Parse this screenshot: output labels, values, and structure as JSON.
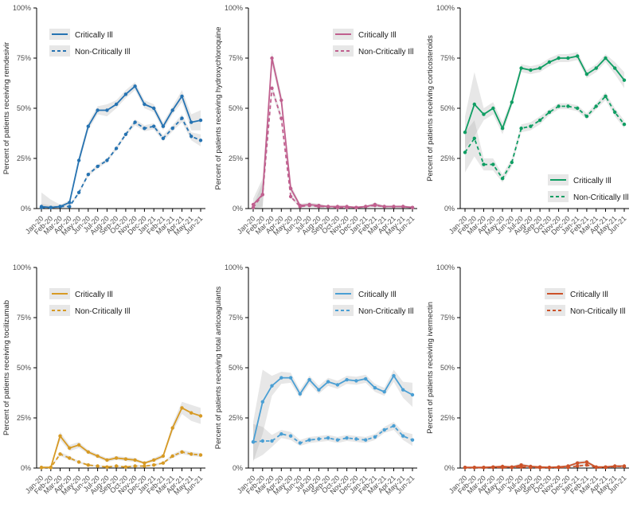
{
  "figure": {
    "background": "#ffffff",
    "months": [
      "Jan-20",
      "Feb-20",
      "Mar-20",
      "Apr-20",
      "May-20",
      "Jun-20",
      "Jul-20",
      "Aug-20",
      "Sep-20",
      "Oct-20",
      "Nov-20",
      "Dec-20",
      "Jan-21",
      "Feb-21",
      "Mar-21",
      "Apr-21",
      "May-21",
      "Jun-21"
    ],
    "y_axis": {
      "values": [
        0,
        25,
        50,
        75,
        100
      ],
      "labels": [
        "0%",
        "25%",
        "50%",
        "75%",
        "100%"
      ],
      "ylim": [
        0,
        100
      ]
    },
    "legend_labels": [
      "Critically Ill",
      "Non-Critically Ill"
    ],
    "ribbon_color": "#a8a8a8"
  },
  "chart_data": [
    {
      "type": "line",
      "id": "remdesivir",
      "ylabel": "Percent of patients receiving remdesivir",
      "color": "#2673b2",
      "legend_pos": "top-left",
      "series": [
        {
          "name": "Critically Ill",
          "style": "solid",
          "values": [
            1,
            0.5,
            1,
            3,
            24,
            41,
            49,
            49,
            52,
            57,
            61,
            52,
            50,
            41,
            49,
            56,
            43,
            44
          ],
          "ci": [
            7,
            4,
            1,
            1,
            2,
            2,
            2,
            3,
            2,
            2,
            2,
            2,
            2,
            2,
            2,
            3,
            4,
            5
          ]
        },
        {
          "name": "Non-Critically Ill",
          "style": "dashed",
          "values": [
            0.5,
            0.5,
            1,
            1,
            8,
            17,
            21,
            24,
            30,
            37,
            43,
            40,
            41,
            35,
            40,
            45,
            36,
            34
          ],
          "ci": [
            2,
            1,
            0.5,
            0.5,
            1,
            1,
            1,
            1,
            1,
            1,
            1.5,
            1.5,
            1.5,
            1.5,
            1.5,
            2,
            2,
            3
          ]
        }
      ]
    },
    {
      "type": "line",
      "id": "hydroxychloroquine",
      "ylabel": "Percent of patients receiving hydroxychloroquine",
      "color": "#c05f8e",
      "legend_pos": "top-right",
      "series": [
        {
          "name": "Critically Ill",
          "style": "solid",
          "values": [
            2,
            7,
            75,
            54,
            10,
            1.5,
            2,
            1.5,
            1,
            1,
            1,
            0.5,
            1,
            2,
            1,
            1,
            1,
            0.5
          ],
          "ci": [
            3,
            8,
            3,
            3,
            2,
            1,
            1,
            1,
            0.5,
            0.5,
            0.5,
            0.5,
            0.5,
            1,
            0.5,
            0.5,
            0.5,
            0.5
          ]
        },
        {
          "name": "Non-Critically Ill",
          "style": "dashed",
          "values": [
            0.5,
            7,
            60,
            45,
            6,
            1,
            1.5,
            1,
            1,
            0.5,
            0.5,
            0.5,
            1,
            1.5,
            1,
            1,
            1,
            0.5
          ],
          "ci": [
            1,
            6,
            2,
            2,
            1,
            0.5,
            0.5,
            0.5,
            0.5,
            0.5,
            0.5,
            0.5,
            0.5,
            0.5,
            0.5,
            0.5,
            0.5,
            0.5
          ]
        }
      ]
    },
    {
      "type": "line",
      "id": "corticosteroids",
      "ylabel": "Percent of patients receiving corticosteroids",
      "color": "#0f9e63",
      "legend_pos": "bottom-right",
      "series": [
        {
          "name": "Critically Ill",
          "style": "solid",
          "values": [
            38,
            52,
            47,
            50,
            40,
            53,
            70,
            69,
            70,
            73,
            75,
            75,
            76,
            67,
            70,
            75,
            70,
            64
          ],
          "ci": [
            8,
            16,
            3,
            3,
            3,
            2,
            2,
            2,
            2,
            2,
            2,
            2,
            2,
            2,
            2,
            2,
            3,
            4
          ]
        },
        {
          "name": "Non-Critically Ill",
          "style": "dashed",
          "values": [
            28,
            35,
            22,
            22,
            15,
            23,
            40,
            41,
            44,
            48,
            51,
            51,
            50,
            46,
            51,
            56,
            48,
            42
          ],
          "ci": [
            10,
            9,
            3,
            3,
            2,
            2,
            2,
            2,
            2,
            1.5,
            1.5,
            1.5,
            1.5,
            1.5,
            1.5,
            2,
            2,
            2
          ]
        }
      ]
    },
    {
      "type": "line",
      "id": "tocilizumab",
      "ylabel": "Percent of patients receiving tocilizumab",
      "color": "#d79a24",
      "legend_pos": "top-left",
      "series": [
        {
          "name": "Critically Ill",
          "style": "solid",
          "values": [
            0.3,
            0.3,
            16,
            10,
            11.5,
            8,
            6,
            4,
            5,
            4.5,
            4,
            2.5,
            4,
            6,
            20,
            30,
            27.5,
            26
          ],
          "ci": [
            0.5,
            0.5,
            2,
            1.5,
            1.5,
            1,
            1,
            1,
            1,
            1,
            1,
            0.5,
            1,
            1,
            2,
            3,
            4,
            4
          ]
        },
        {
          "name": "Non-Critically Ill",
          "style": "dashed",
          "values": [
            0.2,
            0.2,
            7,
            5,
            3,
            1.5,
            1,
            0.5,
            1,
            0.5,
            1,
            1,
            1.5,
            2.5,
            6,
            8,
            7,
            6.5
          ],
          "ci": [
            0.3,
            0.3,
            1,
            1,
            0.5,
            0.5,
            0.5,
            0.5,
            0.5,
            0.5,
            0.5,
            0.5,
            0.5,
            0.5,
            1,
            1,
            1,
            1
          ]
        }
      ]
    },
    {
      "type": "line",
      "id": "total-anticoagulants",
      "ylabel": "Percent of patients receiving total anticoagulants",
      "color": "#4a9fd4",
      "legend_pos": "top-right",
      "series": [
        {
          "name": "Critically Ill",
          "style": "solid",
          "values": [
            13,
            33,
            41,
            45,
            45,
            37,
            44,
            39,
            43,
            41.5,
            44,
            43.5,
            44.5,
            40,
            38,
            46,
            39,
            36.5
          ],
          "ci": [
            10,
            16,
            5,
            3,
            2.5,
            2,
            2,
            2,
            2,
            2,
            2,
            2,
            2,
            2,
            2,
            3,
            4,
            6
          ]
        },
        {
          "name": "Non-Critically Ill",
          "style": "dashed",
          "values": [
            13,
            13.5,
            13.5,
            17,
            16,
            12.5,
            14,
            14.5,
            15,
            14,
            15,
            14.5,
            14,
            15.5,
            19,
            21,
            16,
            14
          ],
          "ci": [
            9,
            7,
            3,
            2,
            2,
            1.5,
            1.5,
            1.5,
            1.5,
            1.5,
            1.5,
            1.5,
            1.5,
            1.5,
            1.5,
            2,
            2,
            3
          ]
        }
      ]
    },
    {
      "type": "line",
      "id": "ivermectin",
      "ylabel": "Percent of patients receiving ivermectin",
      "color": "#cc5229",
      "legend_pos": "top-right",
      "series": [
        {
          "name": "Critically Ill",
          "style": "solid",
          "values": [
            0.3,
            0.3,
            0.3,
            0.5,
            0.8,
            0.5,
            1.5,
            0.8,
            0.5,
            0.3,
            0.5,
            1,
            2.5,
            3,
            0.5,
            0.5,
            1,
            1
          ],
          "ci": [
            0.5,
            0.5,
            0.5,
            0.5,
            0.5,
            0.5,
            1,
            0.5,
            0.5,
            0.5,
            0.5,
            0.5,
            1,
            1,
            0.5,
            0.5,
            0.5,
            0.5
          ]
        },
        {
          "name": "Non-Critically Ill",
          "style": "dashed",
          "values": [
            0.2,
            0.2,
            0.2,
            0.3,
            0.3,
            0.3,
            0.5,
            0.3,
            0.2,
            0.2,
            0.3,
            0.3,
            1,
            1.5,
            0.3,
            0.3,
            0.8,
            0.8
          ],
          "ci": [
            0.3,
            0.3,
            0.3,
            0.3,
            0.3,
            0.3,
            0.5,
            0.3,
            0.3,
            0.3,
            0.3,
            0.3,
            0.5,
            0.5,
            0.3,
            0.3,
            0.3,
            0.3
          ]
        }
      ]
    }
  ]
}
